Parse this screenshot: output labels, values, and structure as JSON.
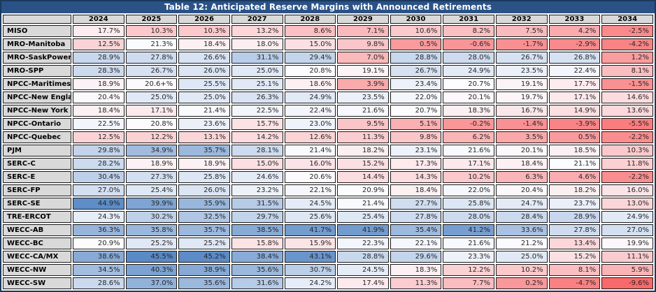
{
  "chart_data": {
    "type": "heatmap",
    "title": "Table 12: Anticipated Reserve Margins with Announced Retirements",
    "columns": [
      "2024",
      "2025",
      "2026",
      "2027",
      "2028",
      "2029",
      "2030",
      "2031",
      "2032",
      "2033",
      "2034"
    ],
    "rows": [
      {
        "region": "MISO",
        "values": [
          "17.7%",
          "10.3%",
          "10.3%",
          "13.2%",
          "8.6%",
          "7.1%",
          "10.6%",
          "8.2%",
          "7.5%",
          "4.2%",
          "-2.5%"
        ]
      },
      {
        "region": "MRO-Manitoba",
        "values": [
          "12.5%",
          "21.3%",
          "18.4%",
          "18.0%",
          "15.0%",
          "9.8%",
          "0.5%",
          "-0.6%",
          "-1.7%",
          "-2.9%",
          "-4.2%"
        ]
      },
      {
        "region": "MRO-SaskPower",
        "values": [
          "28.9%",
          "27.8%",
          "26.6%",
          "31.1%",
          "29.4%",
          "7.0%",
          "28.8%",
          "28.0%",
          "26.7%",
          "26.8%",
          "1.2%"
        ]
      },
      {
        "region": "MRO-SPP",
        "values": [
          "28.3%",
          "26.7%",
          "26.0%",
          "25.0%",
          "20.8%",
          "19.1%",
          "26.7%",
          "24.9%",
          "23.5%",
          "22.4%",
          "8.1%"
        ]
      },
      {
        "region": "NPCC-Maritimes",
        "values": [
          "18.9%",
          "20.6+%",
          "25.5%",
          "25.1%",
          "18.6%",
          "3.9%",
          "23.4%",
          "20.7%",
          "19.1%",
          "17.7%",
          "-1.5%"
        ]
      },
      {
        "region": "NPCC-New England",
        "values": [
          "20.4%",
          "25.0%",
          "25.0%",
          "26.3%",
          "24.9%",
          "23.5%",
          "22.0%",
          "20.1%",
          "19.7%",
          "17.1%",
          "14.6%"
        ]
      },
      {
        "region": "NPCC-New York",
        "values": [
          "18.4%",
          "17.1%",
          "21.4%",
          "22.5%",
          "22.4%",
          "21.6%",
          "20.7%",
          "18.3%",
          "16.7%",
          "14.9%",
          "13.6%"
        ]
      },
      {
        "region": "NPCC-Ontario",
        "values": [
          "22.5%",
          "20.8%",
          "23.6%",
          "15.7%",
          "23.0%",
          "9.5%",
          "5.1%",
          "-0.2%",
          "-1.4%",
          "-3.9%",
          "-5.5%"
        ]
      },
      {
        "region": "NPCC-Quebec",
        "values": [
          "12.5%",
          "12.2%",
          "13.1%",
          "14.2%",
          "12.6%",
          "11.3%",
          "9.8%",
          "6.2%",
          "3.5%",
          "0.5%",
          "-2.2%"
        ]
      },
      {
        "region": "PJM",
        "values": [
          "29.8%",
          "34.9%",
          "35.7%",
          "28.1%",
          "21.4%",
          "18.2%",
          "23.1%",
          "21.6%",
          "20.1%",
          "18.5%",
          "10.3%"
        ]
      },
      {
        "region": "SERC-C",
        "values": [
          "28.2%",
          "18.9%",
          "18.9%",
          "15.0%",
          "16.0%",
          "15.2%",
          "17.3%",
          "17.1%",
          "18.4%",
          "21.1%",
          "11.8%"
        ]
      },
      {
        "region": "SERC-E",
        "values": [
          "30.4%",
          "27.3%",
          "25.8%",
          "24.6%",
          "20.6%",
          "14.4%",
          "14.3%",
          "10.2%",
          "6.3%",
          "4.6%",
          "-2.2%"
        ]
      },
      {
        "region": "SERC-FP",
        "values": [
          "27.0%",
          "25.4%",
          "26.0%",
          "23.2%",
          "22.1%",
          "20.9%",
          "18.4%",
          "22.0%",
          "20.4%",
          "18.2%",
          "16.0%"
        ]
      },
      {
        "region": "SERC-SE",
        "values": [
          "44.9%",
          "39.9%",
          "35.9%",
          "31.5%",
          "24.5%",
          "21.4%",
          "27.7%",
          "25.8%",
          "24.7%",
          "23.7%",
          "13.0%"
        ]
      },
      {
        "region": "TRE-ERCOT",
        "values": [
          "24.3%",
          "30.2%",
          "32.5%",
          "29.7%",
          "25.6%",
          "25.4%",
          "27.8%",
          "28.0%",
          "28.4%",
          "28.9%",
          "24.9%"
        ]
      },
      {
        "region": "WECC-AB",
        "values": [
          "36.3%",
          "35.8%",
          "35.7%",
          "38.5%",
          "41.7%",
          "41.9%",
          "35.4%",
          "41.2%",
          "33.6%",
          "27.8%",
          "27.0%"
        ]
      },
      {
        "region": "WECC-BC",
        "values": [
          "20.9%",
          "25.2%",
          "25.2%",
          "15.8%",
          "15.9%",
          "22.3%",
          "22.1%",
          "21.6%",
          "21.2%",
          "13.4%",
          "19.9%"
        ]
      },
      {
        "region": "WECC-CA/MX",
        "values": [
          "38.6%",
          "45.5%",
          "45.2%",
          "38.4%",
          "43.1%",
          "28.8%",
          "29.6%",
          "23.3%",
          "25.0%",
          "15.2%",
          "11.1%"
        ]
      },
      {
        "region": "WECC-NW",
        "values": [
          "34.5%",
          "40.3%",
          "38.9%",
          "35.6%",
          "30.7%",
          "24.5%",
          "18.3%",
          "12.2%",
          "10.2%",
          "8.1%",
          "5.9%"
        ]
      },
      {
        "region": "WECC-SW",
        "values": [
          "28.6%",
          "37.0%",
          "35.6%",
          "31.6%",
          "24.2%",
          "17.4%",
          "11.3%",
          "7.7%",
          "0.2%",
          "-4.7%",
          "-9.6%"
        ]
      }
    ],
    "color_scale": {
      "min": -9.6,
      "mid": 21.0,
      "max": 45.5,
      "min_color": "#F8696B",
      "mid_color": "#FCFCFF",
      "max_color": "#5A8AC6"
    },
    "layout": {
      "legend": "none",
      "grid": "on",
      "value_align": "right"
    }
  },
  "colors": {
    "title_bg": "#2A5287",
    "title_text": "#FFFFFF",
    "outer_border": "#1B3A5C",
    "header_bg": "#D9D9D9",
    "cell_border": "#1A1A1A",
    "text": "#262626"
  }
}
